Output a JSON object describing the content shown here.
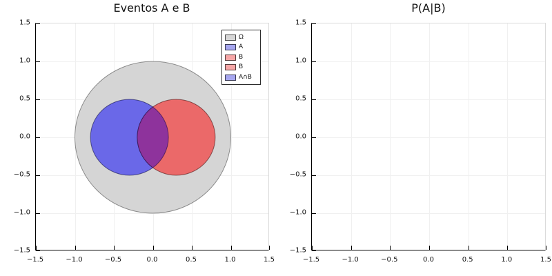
{
  "chart_data": [
    {
      "type": "venn",
      "title": "Eventos A e B",
      "xlabel": "",
      "ylabel": "",
      "xlim": [
        -1.5,
        1.5
      ],
      "ylim": [
        -1.5,
        1.5
      ],
      "grid": true,
      "x_tick_labels": [
        "−1.5",
        "−1.0",
        "−0.5",
        "0.0",
        "0.5",
        "1.0",
        "1.5"
      ],
      "y_tick_labels": [
        "1.5",
        "1.0",
        "0.5",
        "0.0",
        "−0.5",
        "−1.0",
        "−1.5"
      ],
      "legend_position": "top-right-inside",
      "legend": [
        {
          "label": "Ω",
          "fill": "#D6D6D6"
        },
        {
          "label": "A",
          "fill": "#A6A6EF"
        },
        {
          "label": "B",
          "fill": "#F6A6A6"
        },
        {
          "label": "B",
          "fill": "#F6A6A6"
        },
        {
          "label": "A∩B",
          "fill": "#A6A6EF"
        }
      ],
      "shapes": [
        {
          "name": "omega",
          "label": "Ω",
          "kind": "circle",
          "center_x": 0,
          "center_y": 0,
          "radius": 1.0,
          "fill": "#D5D5D5",
          "stroke": "rgba(0,0,0,0.40)"
        },
        {
          "name": "A",
          "label": "A",
          "kind": "circle",
          "center_x": -0.3,
          "center_y": 0,
          "radius": 0.5,
          "fill": "#6A68E8",
          "stroke": "rgba(10,10,60,0.55)"
        },
        {
          "name": "B",
          "label": "B",
          "kind": "circle",
          "center_x": 0.3,
          "center_y": 0,
          "radius": 0.5,
          "fill": "#EB6969",
          "stroke": "rgba(60,10,10,0.55)"
        },
        {
          "name": "A-intersect-B",
          "label": "A∩B",
          "kind": "lens_intersection",
          "of": [
            "A",
            "B"
          ],
          "fill": "#8E339C",
          "stroke": "rgba(30,8,75,0.6)"
        }
      ]
    },
    {
      "type": "scatter",
      "title": "P(A|B)",
      "xlabel": "",
      "ylabel": "",
      "xlim": [
        -1.5,
        1.5
      ],
      "ylim": [
        -1.5,
        1.5
      ],
      "grid": true,
      "x_tick_labels": [
        "−1.5",
        "−1.0",
        "−0.5",
        "0.0",
        "0.5",
        "1.0",
        "1.5"
      ],
      "y_tick_labels": [
        "1.5",
        "1.0",
        "0.5",
        "0.0",
        "−0.5",
        "−1.0",
        "−1.5"
      ],
      "points": []
    }
  ]
}
